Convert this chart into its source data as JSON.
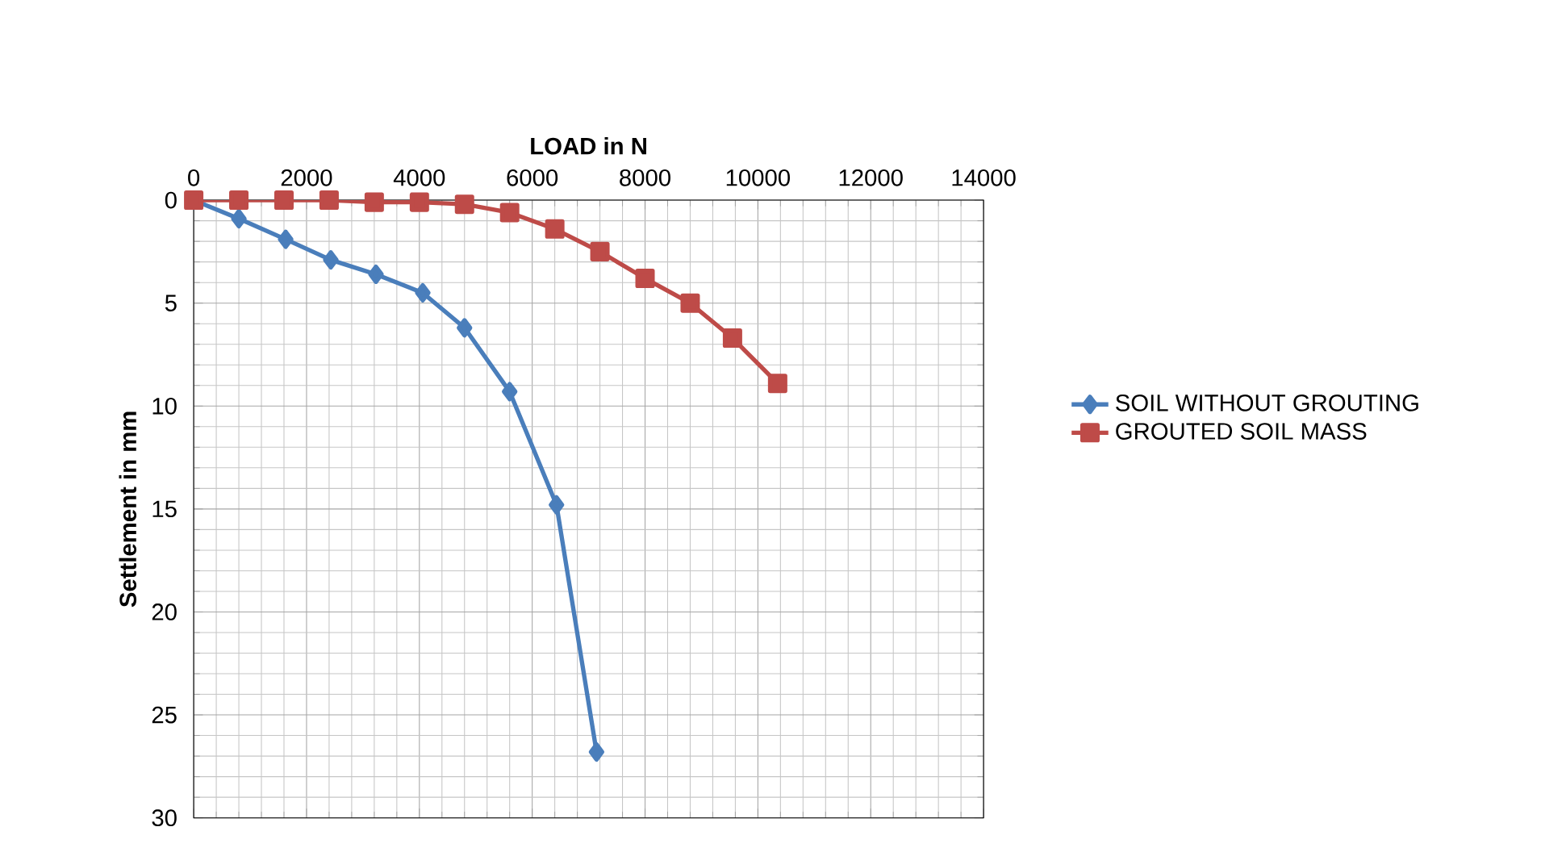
{
  "chart_data": {
    "type": "line",
    "xlabel": "LOAD in N",
    "ylabel": "Settlement in mm",
    "xlim": [
      0,
      14000
    ],
    "xticks": [
      0,
      2000,
      4000,
      6000,
      8000,
      10000,
      12000,
      14000
    ],
    "ylim": [
      30,
      0
    ],
    "yticks": [
      0,
      5,
      10,
      15,
      20,
      25,
      30
    ],
    "grid": true,
    "legend": "right",
    "series": [
      {
        "name": "SOIL WITHOUT  GROUTING",
        "color": "#4a7ebb",
        "marker": "diamond",
        "x": [
          0,
          800,
          1630,
          2430,
          3230,
          4060,
          4800,
          5600,
          6430,
          7140
        ],
        "values": [
          0,
          0.9,
          1.9,
          2.9,
          3.6,
          4.5,
          6.2,
          9.3,
          14.8,
          26.8
        ]
      },
      {
        "name": "GROUTED SOIL MASS",
        "color": "#be4b48",
        "marker": "square",
        "x": [
          0,
          800,
          1600,
          2400,
          3200,
          4000,
          4800,
          5600,
          6400,
          7200,
          8000,
          8800,
          9550,
          10350
        ],
        "values": [
          0,
          0,
          0,
          0,
          0.1,
          0.1,
          0.2,
          0.6,
          1.4,
          2.5,
          3.8,
          5.0,
          6.7,
          8.9
        ]
      }
    ]
  }
}
